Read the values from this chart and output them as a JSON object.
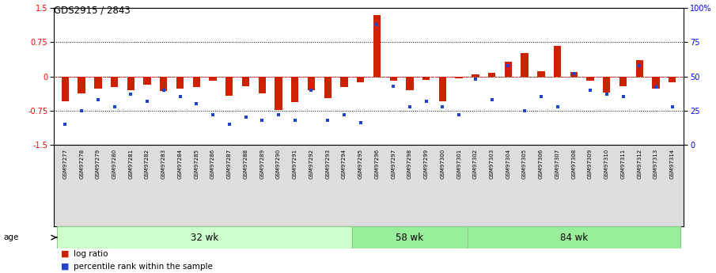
{
  "title": "GDS2915 / 2843",
  "samples": [
    "GSM97277",
    "GSM97278",
    "GSM97279",
    "GSM97280",
    "GSM97281",
    "GSM97282",
    "GSM97283",
    "GSM97284",
    "GSM97285",
    "GSM97286",
    "GSM97287",
    "GSM97288",
    "GSM97289",
    "GSM97290",
    "GSM97291",
    "GSM97292",
    "GSM97293",
    "GSM97294",
    "GSM97295",
    "GSM97296",
    "GSM97297",
    "GSM97298",
    "GSM97299",
    "GSM97300",
    "GSM97301",
    "GSM97302",
    "GSM97303",
    "GSM97304",
    "GSM97305",
    "GSM97306",
    "GSM97307",
    "GSM97308",
    "GSM97309",
    "GSM97310",
    "GSM97311",
    "GSM97312",
    "GSM97313",
    "GSM97314"
  ],
  "log_ratio": [
    -0.55,
    -0.38,
    -0.27,
    -0.23,
    -0.3,
    -0.18,
    -0.32,
    -0.27,
    -0.23,
    -0.1,
    -0.42,
    -0.21,
    -0.38,
    -0.73,
    -0.57,
    -0.3,
    -0.48,
    -0.24,
    -0.12,
    1.35,
    -0.1,
    -0.3,
    -0.08,
    -0.55,
    -0.05,
    0.05,
    0.08,
    0.32,
    0.52,
    0.12,
    0.67,
    0.1,
    -0.1,
    -0.35,
    -0.21,
    0.35,
    -0.26,
    -0.13
  ],
  "percentile": [
    15,
    25,
    33,
    28,
    37,
    32,
    40,
    35,
    30,
    22,
    15,
    20,
    18,
    22,
    18,
    40,
    18,
    22,
    16,
    88,
    43,
    28,
    32,
    28,
    22,
    48,
    33,
    58,
    25,
    35,
    28,
    52,
    40,
    37,
    35,
    58,
    42,
    28
  ],
  "groups": [
    {
      "label": "32 wk",
      "start": 0,
      "end": 18
    },
    {
      "label": "58 wk",
      "start": 18,
      "end": 25
    },
    {
      "label": "84 wk",
      "start": 25,
      "end": 38
    }
  ],
  "ylim": [
    -1.5,
    1.5
  ],
  "yticks_left": [
    -1.5,
    -0.75,
    0,
    0.75,
    1.5
  ],
  "yticks_right_pct": [
    0,
    25,
    50,
    75,
    100
  ],
  "yticks_right_labels": [
    "0",
    "25",
    "50",
    "75",
    "100%"
  ],
  "bar_color": "#cc2200",
  "dot_color": "#2244cc",
  "bg_color": "#ffffff",
  "xticklabel_bg": "#dddddd",
  "group_bg_color_light": "#ccffcc",
  "group_bg_color_dark": "#99ee99",
  "group_border_color": "#88cc88"
}
